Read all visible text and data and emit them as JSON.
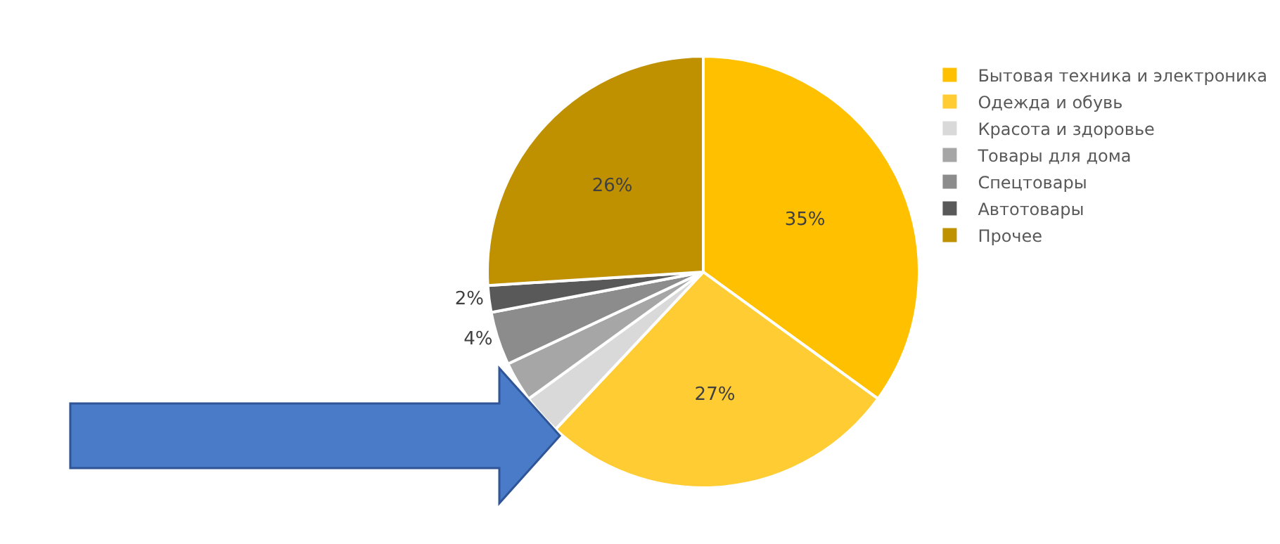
{
  "chart_data": {
    "type": "pie",
    "categories": [
      "Бытовая техника и электроника",
      "Одежда и обувь",
      "Красота и здоровье",
      "Товары для дома",
      "Спецтовары",
      "Автотовары",
      "Прочее"
    ],
    "values": [
      35,
      27,
      3,
      3,
      4,
      2,
      26
    ],
    "colors": [
      "#ffc000",
      "#ffcc33",
      "#d9d9d9",
      "#a6a6a6",
      "#8c8c8c",
      "#595959",
      "#bf9000"
    ],
    "value_labels": [
      "35%",
      "27%",
      null,
      null,
      "4%",
      "2%",
      "26%"
    ],
    "legend": "right"
  }
}
